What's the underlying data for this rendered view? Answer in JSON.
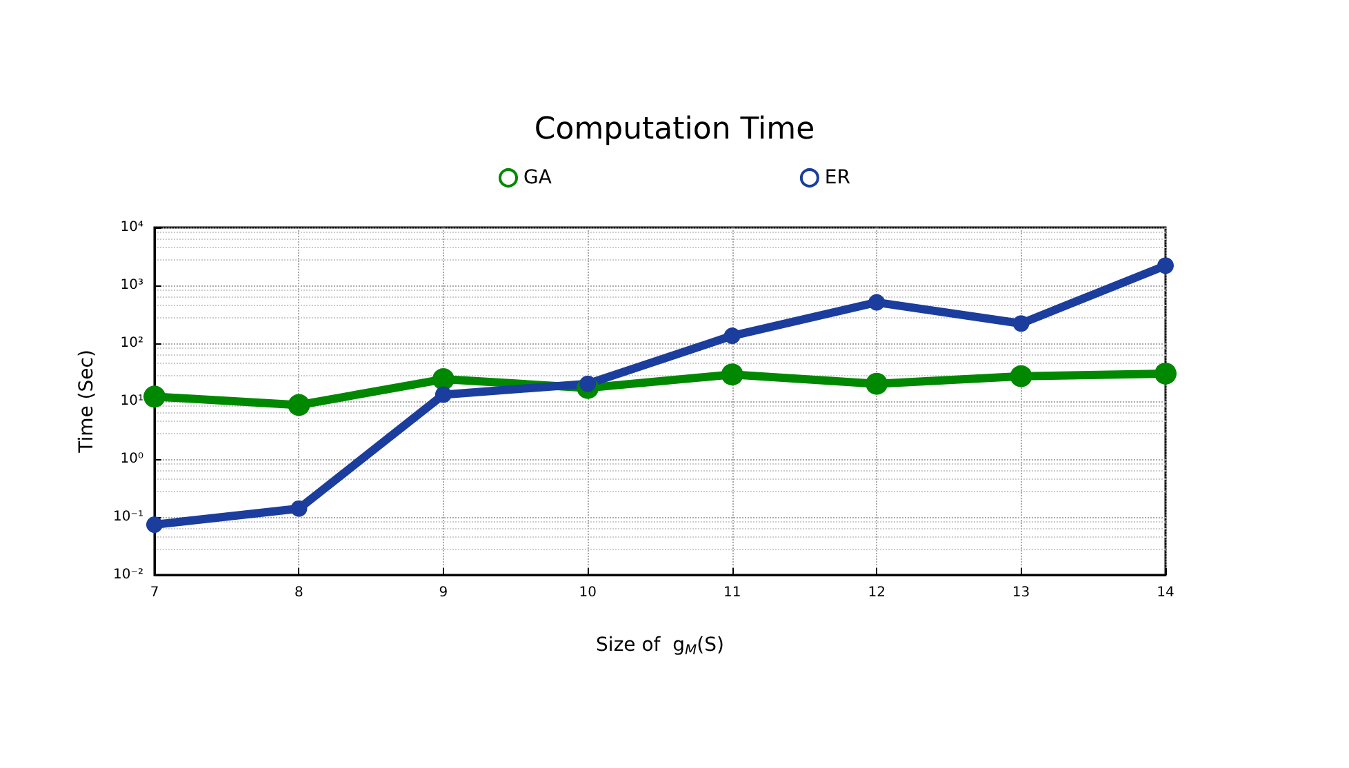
{
  "chart_data": {
    "type": "line",
    "title": "Computation Time",
    "xlabel": "Size of  g$_{M}$(S)",
    "ylabel": "Time (Sec)",
    "x": [
      7,
      8,
      9,
      10,
      11,
      12,
      13,
      14
    ],
    "series": [
      {
        "name": "GA",
        "color": "#008800",
        "values": [
          12,
          8.6,
          24,
          17,
          29,
          20,
          27,
          30
        ]
      },
      {
        "name": "ER",
        "color": "#1a3d9e",
        "values": [
          0.074,
          0.14,
          13,
          20,
          135,
          510,
          220,
          2200
        ]
      }
    ],
    "xlim": [
      7,
      14
    ],
    "xticks": [
      7,
      8,
      9,
      10,
      11,
      12,
      13,
      14
    ],
    "ylim": [
      0.01,
      10000
    ],
    "yticks": [
      {
        "value": 0.01,
        "label": "10⁻²"
      },
      {
        "value": 0.1,
        "label": "10⁻¹"
      },
      {
        "value": 1,
        "label": "10⁰"
      },
      {
        "value": 10,
        "label": "10¹"
      },
      {
        "value": 100,
        "label": "10²"
      },
      {
        "value": 1000,
        "label": "10³"
      },
      {
        "value": 10000,
        "label": "10⁴"
      }
    ],
    "log": true,
    "grid": true,
    "legend": "top",
    "marker": "circle",
    "line_style": "solid"
  }
}
